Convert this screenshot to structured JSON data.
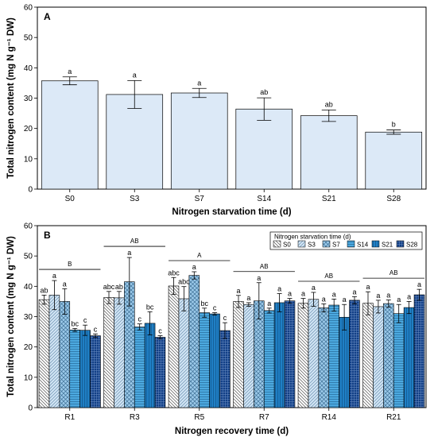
{
  "chart_data": [
    {
      "type": "bar",
      "panel": "A",
      "xlabel": "Nitrogen starvation time (d)",
      "ylabel": "Total nitrogen content (mg N g⁻¹ DW)",
      "ylim": [
        0,
        60
      ],
      "yticks": [
        0,
        10,
        20,
        30,
        40,
        50,
        60
      ],
      "categories": [
        "S0",
        "S3",
        "S7",
        "S14",
        "S21",
        "S28"
      ],
      "values": [
        35.7,
        31.2,
        31.7,
        26.4,
        24.2,
        18.8
      ],
      "errors": [
        1.3,
        4.6,
        1.5,
        3.7,
        1.9,
        0.7
      ],
      "letters": [
        "a",
        "a",
        "a",
        "ab",
        "ab",
        "b"
      ],
      "color": "#dce9f7"
    },
    {
      "type": "bar",
      "panel": "B",
      "xlabel": "Nitrogen recovery time (d)",
      "ylabel": "Total nitrogen content (mg N g⁻¹ DW)",
      "ylim": [
        0,
        60
      ],
      "yticks": [
        0,
        10,
        20,
        30,
        40,
        50,
        60
      ],
      "legend_title": "Nitrogen starvation time (d)",
      "legend_position": "top-right",
      "categories": [
        "R1",
        "R3",
        "R5",
        "R7",
        "R14",
        "R21"
      ],
      "group_letters": [
        "B",
        "AB",
        "A",
        "AB",
        "AB",
        "AB"
      ],
      "series": [
        {
          "name": "S0",
          "pattern": "diag-down",
          "color": "#ffffff",
          "values": [
            35.6,
            36.3,
            40.1,
            35.0,
            34.4,
            34.4
          ],
          "errors": [
            1.5,
            2.0,
            2.8,
            2.0,
            1.6,
            3.8
          ],
          "letters": [
            "ab",
            "abc",
            "abc",
            "a",
            "a",
            "a"
          ]
        },
        {
          "name": "S3",
          "pattern": "diag-up",
          "color": "#d3e6f5",
          "values": [
            37.1,
            36.2,
            35.9,
            34.0,
            35.7,
            33.3
          ],
          "errors": [
            4.8,
            2.1,
            4.0,
            0.6,
            2.3,
            2.1
          ],
          "letters": [
            "a",
            "ab",
            "abc",
            "a",
            "a",
            "a"
          ]
        },
        {
          "name": "S7",
          "pattern": "cross",
          "color": "#9ccaea",
          "values": [
            35.0,
            41.5,
            43.6,
            35.2,
            32.9,
            34.3
          ],
          "errors": [
            4.2,
            8.0,
            1.2,
            6.0,
            1.3,
            1.2
          ],
          "letters": [
            "a",
            "a",
            "a",
            "a",
            "a",
            "a"
          ]
        },
        {
          "name": "S14",
          "pattern": "horizontal",
          "color": "#4ca9df",
          "values": [
            25.6,
            26.6,
            31.3,
            32.0,
            33.8,
            31.0
          ],
          "errors": [
            0.5,
            1.0,
            1.5,
            0.8,
            2.0,
            3.0
          ],
          "letters": [
            "bc",
            "c",
            "bc",
            "a",
            "a",
            "a"
          ]
        },
        {
          "name": "S21",
          "pattern": "vertical",
          "color": "#1f7fc4",
          "values": [
            25.5,
            27.8,
            30.9,
            34.6,
            29.8,
            33.0
          ],
          "errors": [
            1.7,
            3.8,
            0.4,
            3.0,
            4.2,
            2.0
          ],
          "letters": [
            "c",
            "bc",
            "c",
            "a",
            "a",
            "a"
          ]
        },
        {
          "name": "S28",
          "pattern": "grid",
          "color": "#123f86",
          "values": [
            23.7,
            23.2,
            25.4,
            35.2,
            35.4,
            37.2
          ],
          "errors": [
            0.6,
            0.5,
            2.6,
            0.8,
            1.2,
            1.8
          ],
          "letters": [
            "c",
            "c",
            "c",
            "a",
            "a",
            "a"
          ]
        }
      ]
    }
  ]
}
